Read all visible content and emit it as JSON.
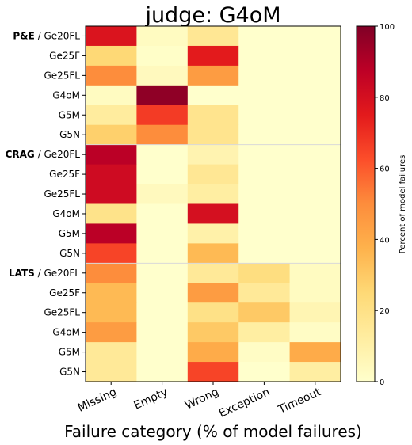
{
  "chart_data": {
    "type": "heatmap",
    "title": "judge: G4oM",
    "xlabel": "Failure category (% of model failures)",
    "categories": [
      "Missing",
      "Empty",
      "Wrong",
      "Exception",
      "Timeout"
    ],
    "rows": [
      {
        "group": "P&E",
        "label": "Ge20FL",
        "values": [
          78,
          3,
          16,
          0,
          0
        ]
      },
      {
        "group": "",
        "label": "Ge25F",
        "values": [
          25,
          1,
          75,
          0,
          0
        ]
      },
      {
        "group": "",
        "label": "Ge25FL",
        "values": [
          50,
          4,
          45,
          0,
          0
        ]
      },
      {
        "group": "",
        "label": "G4oM",
        "values": [
          3,
          97,
          0,
          0,
          0
        ]
      },
      {
        "group": "",
        "label": "G5M",
        "values": [
          13,
          67,
          18,
          0,
          0
        ]
      },
      {
        "group": "",
        "label": "G5N",
        "values": [
          28,
          50,
          18,
          0,
          0
        ]
      },
      {
        "group": "CRAG",
        "label": "Ge20FL",
        "values": [
          88,
          0,
          8,
          0,
          0
        ]
      },
      {
        "group": "",
        "label": "Ge25F",
        "values": [
          82,
          0,
          16,
          0,
          0
        ]
      },
      {
        "group": "",
        "label": "Ge25FL",
        "values": [
          82,
          4,
          12,
          0,
          0
        ]
      },
      {
        "group": "",
        "label": "G4oM",
        "values": [
          19,
          0,
          80,
          0,
          0
        ]
      },
      {
        "group": "",
        "label": "G5M",
        "values": [
          88,
          0,
          10,
          0,
          0
        ]
      },
      {
        "group": "",
        "label": "G5N",
        "values": [
          65,
          0,
          35,
          0,
          0
        ]
      },
      {
        "group": "LATS",
        "label": "Ge20FL",
        "values": [
          50,
          0,
          15,
          22,
          3
        ]
      },
      {
        "group": "",
        "label": "Ge25F",
        "values": [
          35,
          0,
          45,
          15,
          3
        ]
      },
      {
        "group": "",
        "label": "Ge25FL",
        "values": [
          35,
          0,
          20,
          30,
          7
        ]
      },
      {
        "group": "",
        "label": "G4oM",
        "values": [
          45,
          0,
          30,
          12,
          2
        ]
      },
      {
        "group": "",
        "label": "G5M",
        "values": [
          15,
          0,
          40,
          2,
          40
        ]
      },
      {
        "group": "",
        "label": "G5N",
        "values": [
          15,
          0,
          65,
          0,
          12
        ]
      }
    ],
    "group_separators_after_rows": [
      5,
      11
    ],
    "colorbar": {
      "label": "Percent of model failures",
      "min": 0,
      "max": 100,
      "ticks": [
        0,
        20,
        40,
        60,
        80,
        100
      ],
      "colormap": "YlOrRd"
    },
    "colors": {
      "colormap_stops": [
        "#ffffcc",
        "#ffeda0",
        "#fed976",
        "#feb24c",
        "#fd8d3c",
        "#fc4e2a",
        "#e31a1c",
        "#bd0026",
        "#800026"
      ],
      "separator": "#d9d9d9",
      "axis": "#000000"
    }
  }
}
